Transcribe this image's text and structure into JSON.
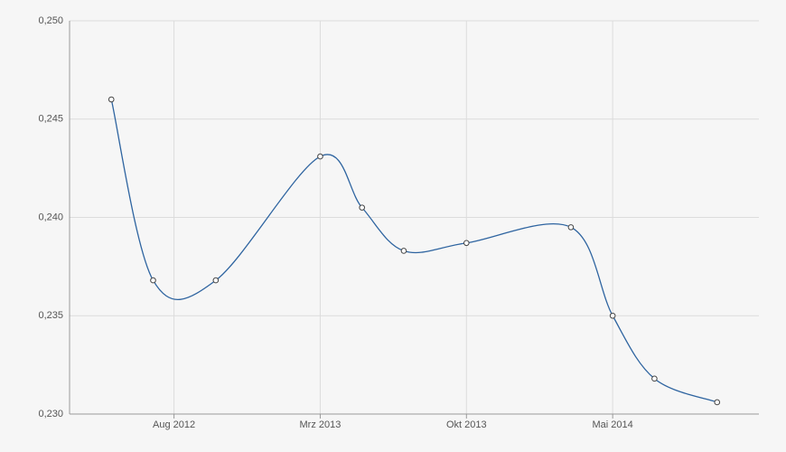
{
  "chart_data": {
    "type": "line",
    "x": [
      "2012-05",
      "2012-07",
      "2012-10",
      "2013-03",
      "2013-05",
      "2013-07",
      "2013-10",
      "2014-03",
      "2014-05",
      "2014-07",
      "2014-10"
    ],
    "values": [
      0.246,
      0.2368,
      0.2368,
      0.2431,
      0.2405,
      0.2383,
      0.2387,
      0.2395,
      0.235,
      0.2318,
      0.2306
    ],
    "color": "#2e64a0",
    "xlim": [
      "2012-03",
      "2014-12"
    ],
    "xticks": [
      {
        "value": "2012-08",
        "label": "Aug 2012"
      },
      {
        "value": "2013-03",
        "label": "Mrz 2013"
      },
      {
        "value": "2013-10",
        "label": "Okt 2013"
      },
      {
        "value": "2014-05",
        "label": "Mai 2014"
      }
    ],
    "ylim": [
      0.23,
      0.25
    ],
    "yticks": [
      {
        "value": 0.23,
        "label": "0,230"
      },
      {
        "value": 0.235,
        "label": "0,235"
      },
      {
        "value": 0.24,
        "label": "0,240"
      },
      {
        "value": 0.245,
        "label": "0,245"
      },
      {
        "value": 0.25,
        "label": "0,250"
      }
    ],
    "grid": true
  }
}
